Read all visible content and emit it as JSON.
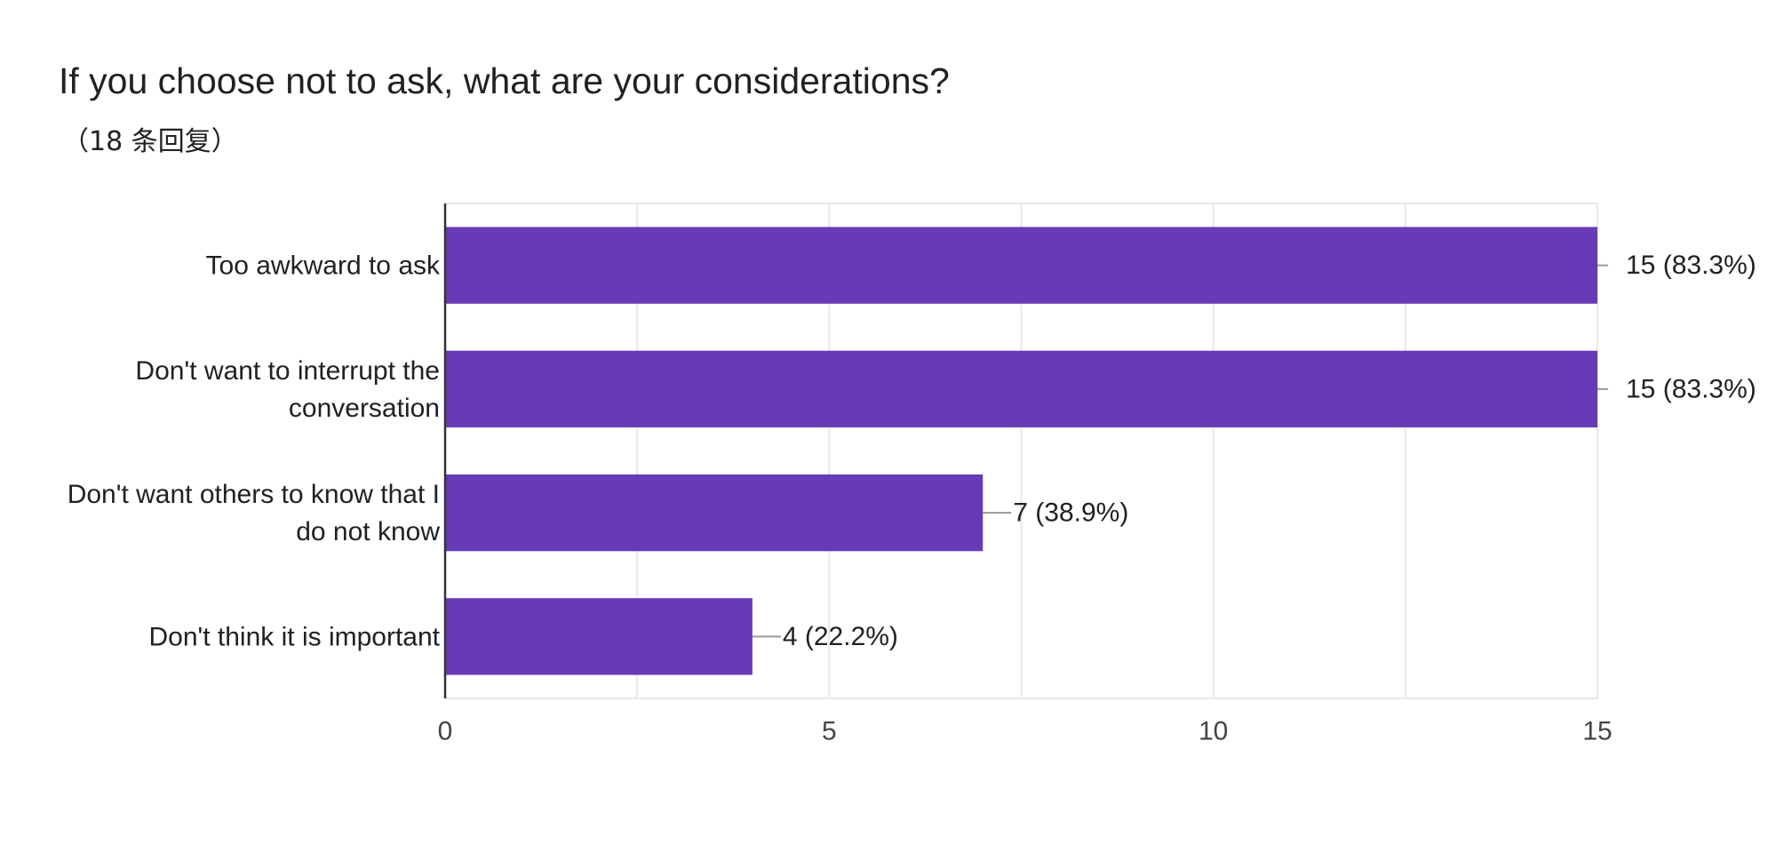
{
  "chart_data": {
    "type": "bar",
    "orientation": "horizontal",
    "title": "If you choose not to ask, what are your considerations?",
    "subtitle": "（18 条回复）",
    "categories": [
      "Too awkward to ask",
      "Don't want to interrupt the conversation",
      "Don't want others to know that I do not know",
      "Don't think it is important"
    ],
    "category_lines": [
      [
        "Too awkward to ask"
      ],
      [
        "Don't want to interrupt the",
        "conversation"
      ],
      [
        "Don't want others to know that I",
        "do not know"
      ],
      [
        "Don't think it is important"
      ]
    ],
    "values": [
      15,
      15,
      7,
      4
    ],
    "value_labels": [
      "15 (83.3%)",
      "15 (83.3%)",
      "7 (38.9%)",
      "4 (22.2%)"
    ],
    "xlim": [
      0,
      15
    ],
    "xticks": [
      0,
      5,
      10,
      15
    ],
    "grid": true,
    "bar_color": "#673ab7",
    "grid_color": "#e8e8e8",
    "axis_color": "#333333",
    "leader_color": "#999999"
  }
}
